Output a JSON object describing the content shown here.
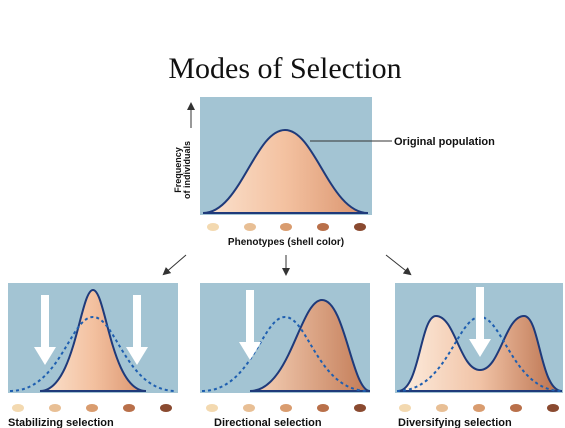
{
  "title": "Modes of Selection",
  "top": {
    "y_label_1": "Frequency",
    "y_label_2": "of individuals",
    "curve_label": "Original population",
    "x_label": "Phenotypes (shell color)"
  },
  "panels": [
    "Stabilizing selection",
    "Directional selection",
    "Diversifying selection"
  ]
}
